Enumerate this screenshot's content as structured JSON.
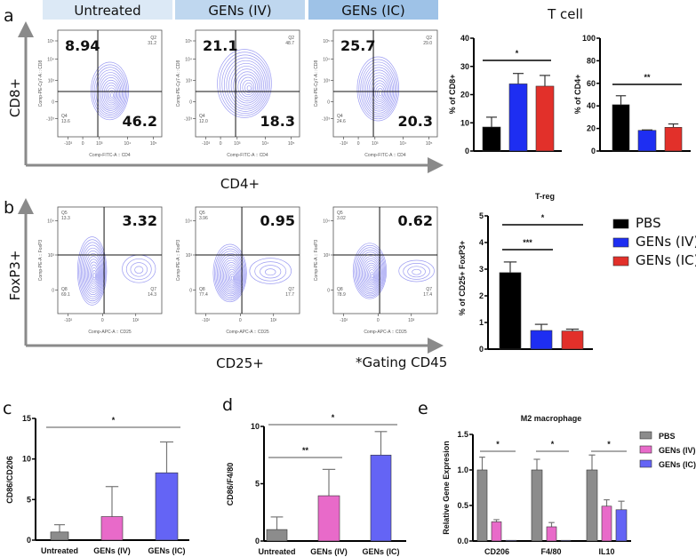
{
  "panel_labels": {
    "a": "a",
    "b": "b",
    "c": "c",
    "d": "d",
    "e": "e"
  },
  "colors": {
    "pbs": "#000000",
    "gens_iv": "#1e2ef2",
    "gens_ic": "#e2302a",
    "untreated_gray": "#8c8c8c",
    "pink": "#e86ac9",
    "violet": "#6464f5",
    "contour": "#4a4ae8",
    "header_1": "#dce9f6",
    "header_2": "#bfd7ef",
    "header_3": "#9ec2e7",
    "arrow": "#8a8a8a"
  },
  "panel_a": {
    "headers": [
      "Untreated",
      "GENs (IV)",
      "GENs (IC)"
    ],
    "y_title": "CD8+",
    "x_title": "CD4+",
    "y_axis_label": "Comp-PE-Cy7-A :: CD8",
    "x_axis_label": "Comp-FITC-A :: CD4",
    "y_ticks": [
      "10⁵",
      "10⁴",
      "10³",
      "0",
      "-10³"
    ],
    "x_ticks": [
      "-10³",
      "0",
      "10³",
      "10⁴",
      "10⁵"
    ],
    "plots": [
      {
        "main_a": "8.94",
        "main_b": "46.2",
        "q_top": "Q2",
        "q_top_val": "31.2",
        "q_bot": "Q4",
        "q_bot_val": "13.6"
      },
      {
        "main_a": "21.1",
        "main_b": "18.3",
        "q_top": "Q2",
        "q_top_val": "48.7",
        "q_bot": "Q4",
        "q_bot_val": "12.0"
      },
      {
        "main_a": "25.7",
        "main_b": "20.3",
        "q_top": "Q2",
        "q_top_val": "29.0",
        "q_bot": "Q4",
        "q_bot_val": "24.6"
      }
    ]
  },
  "panel_b": {
    "y_title": "FoxP3+",
    "x_title": "CD25+",
    "note": "*Gating CD45",
    "y_axis_label": "Comp-PE-A :: FoxP3",
    "x_axis_label": "Comp-APC-A :: CD25",
    "y_ticks": [
      "10⁴",
      "10³",
      "0"
    ],
    "x_ticks": [
      "-10²",
      "0",
      "10²"
    ],
    "plots": [
      {
        "main": "3.32",
        "q5": "Q5",
        "q5_val": "13.3",
        "q8": "Q8",
        "q8_val": "69.1",
        "q7": "Q7",
        "q7_val": "14.3"
      },
      {
        "main": "0.95",
        "q5": "Q5",
        "q5_val": "3.96",
        "q8": "Q8",
        "q8_val": "77.4",
        "q7": "Q7",
        "q7_val": "17.7"
      },
      {
        "main": "0.62",
        "q5": "Q5",
        "q5_val": "3.02",
        "q8": "Q8",
        "q8_val": "78.9",
        "q7": "Q7",
        "q7_val": "17.4"
      }
    ]
  },
  "t_cell_title": "T cell",
  "chart_data": [
    {
      "type": "bar",
      "title": "",
      "ylabel": "% of CD8+",
      "ylim": [
        0,
        40
      ],
      "yticks": [
        "0",
        "10",
        "20",
        "30",
        "40"
      ],
      "categories": [
        ""
      ],
      "series": [
        {
          "name": "PBS",
          "values": [
            8.5
          ],
          "errors": [
            3.5
          ],
          "color": "#000000"
        },
        {
          "name": "GENs (IV)",
          "values": [
            23.8
          ],
          "errors": [
            3.7
          ],
          "color": "#1e2ef2"
        },
        {
          "name": "GENs (IC)",
          "values": [
            23.0
          ],
          "errors": [
            3.8
          ],
          "color": "#e2302a"
        }
      ],
      "significance": [
        {
          "label": "*",
          "from": "PBS",
          "to": "GENs (IC)"
        }
      ]
    },
    {
      "type": "bar",
      "title": "",
      "ylabel": "% of CD4+",
      "ylim": [
        0,
        100
      ],
      "yticks": [
        "0",
        "20",
        "40",
        "60",
        "80",
        "100"
      ],
      "categories": [
        ""
      ],
      "series": [
        {
          "name": "PBS",
          "values": [
            41
          ],
          "errors": [
            8
          ],
          "color": "#000000"
        },
        {
          "name": "GENs (IV)",
          "values": [
            18.3
          ],
          "errors": [
            0.4
          ],
          "color": "#1e2ef2"
        },
        {
          "name": "GENs (IC)",
          "values": [
            21
          ],
          "errors": [
            3
          ],
          "color": "#e2302a"
        }
      ],
      "significance": [
        {
          "label": "**",
          "from": "PBS",
          "to": "GENs (IC)"
        }
      ]
    },
    {
      "type": "bar",
      "title": "T-reg",
      "ylabel": "% of CD25+ FoxP3+",
      "ylim": [
        0,
        5
      ],
      "yticks": [
        "0",
        "1",
        "2",
        "3",
        "4",
        "5"
      ],
      "categories": [
        ""
      ],
      "legend": [
        "PBS",
        "GENs (IV)",
        "GENs (IC)"
      ],
      "legend_position": "right",
      "series": [
        {
          "name": "PBS",
          "values": [
            2.87
          ],
          "errors": [
            0.4
          ],
          "color": "#000000"
        },
        {
          "name": "GENs (IV)",
          "values": [
            0.7
          ],
          "errors": [
            0.23
          ],
          "color": "#1e2ef2"
        },
        {
          "name": "GENs (IC)",
          "values": [
            0.68
          ],
          "errors": [
            0.07
          ],
          "color": "#e2302a"
        }
      ],
      "significance": [
        {
          "label": "*",
          "from": "PBS",
          "to": "GENs (IC)"
        },
        {
          "label": "***",
          "from": "PBS",
          "to": "GENs (IV)"
        }
      ]
    },
    {
      "type": "bar",
      "title": "",
      "ylabel": "CD86/CD206",
      "ylim": [
        0,
        15
      ],
      "yticks": [
        "0",
        "5",
        "10",
        "15"
      ],
      "categories": [
        "Untreated",
        "GENs (IV)",
        "GENs (IC)"
      ],
      "series": [
        {
          "name": "",
          "values": [
            1.0,
            2.9,
            8.3
          ],
          "errors": [
            0.9,
            3.7,
            3.8
          ],
          "colors": [
            "#8c8c8c",
            "#e86ac9",
            "#6464f5"
          ]
        }
      ],
      "significance": [
        {
          "label": "*",
          "from": "Untreated",
          "to": "GENs (IC)"
        }
      ]
    },
    {
      "type": "bar",
      "title": "",
      "ylabel": "CD86/F4/80",
      "ylim": [
        0,
        10
      ],
      "yticks": [
        "0",
        "5",
        "10"
      ],
      "categories": [
        "Untreated",
        "GENs (IV)",
        "GENs (IC)"
      ],
      "series": [
        {
          "name": "",
          "values": [
            1.0,
            3.95,
            7.5
          ],
          "errors": [
            1.1,
            2.3,
            2.05
          ],
          "colors": [
            "#8c8c8c",
            "#e86ac9",
            "#6464f5"
          ]
        }
      ],
      "significance": [
        {
          "label": "*",
          "from": "Untreated",
          "to": "GENs (IC)"
        },
        {
          "label": "**",
          "from": "Untreated",
          "to": "GENs (IV)"
        }
      ]
    },
    {
      "type": "bar",
      "title": "M2 macrophage",
      "ylabel": "Relative Gene Expresion",
      "ylim": [
        0,
        1.5
      ],
      "yticks": [
        "0.0",
        "0.5",
        "1.0",
        "1.5"
      ],
      "categories": [
        "CD206",
        "F4/80",
        "IL10"
      ],
      "legend": [
        "PBS",
        "GENs (IV)",
        "GENs (IC)"
      ],
      "legend_position": "right",
      "series": [
        {
          "name": "PBS",
          "values": [
            1.0,
            1.0,
            1.0
          ],
          "errors": [
            0.18,
            0.15,
            0.21
          ],
          "color": "#8c8c8c"
        },
        {
          "name": "GENs (IV)",
          "values": [
            0.27,
            0.2,
            0.49
          ],
          "errors": [
            0.03,
            0.06,
            0.09
          ],
          "color": "#e86ac9"
        },
        {
          "name": "GENs (IC)",
          "values": [
            0.01,
            0.01,
            0.44
          ],
          "errors": [
            0.0,
            0.0,
            0.12
          ],
          "color": "#6464f5"
        }
      ],
      "significance": [
        {
          "label": "*",
          "category": "CD206"
        },
        {
          "label": "*",
          "category": "F4/80"
        },
        {
          "label": "*",
          "category": "IL10"
        }
      ]
    }
  ]
}
